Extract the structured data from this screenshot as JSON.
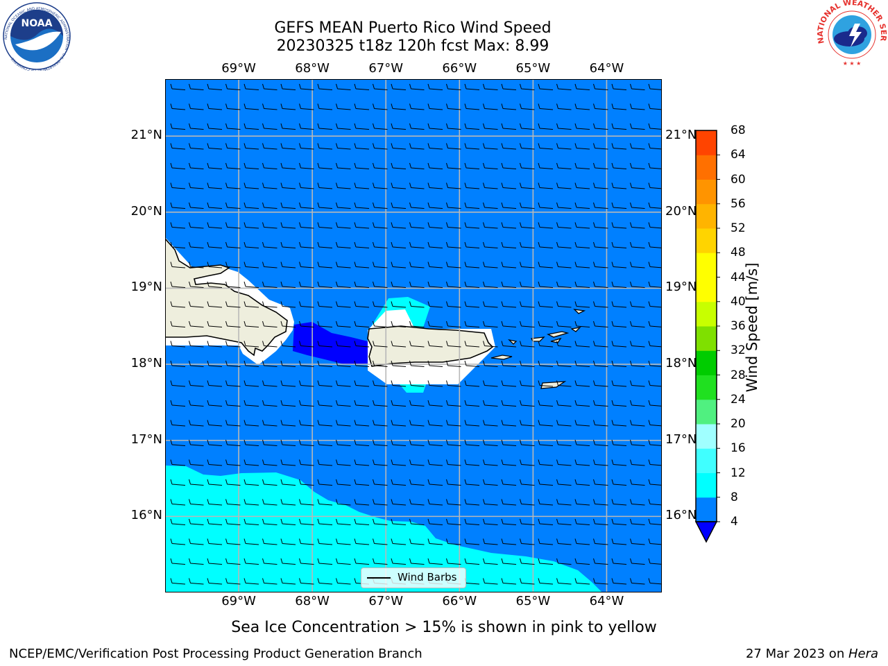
{
  "title": {
    "line1": "GEFS MEAN Puerto Rico Wind Speed",
    "line2": "20230325 t18z 120h fcst   Max: 8.99"
  },
  "logos": {
    "left": {
      "text": "NOAA",
      "ring_text": "NATIONAL OCEANIC AND ATMOSPHERIC ADMINISTRATION · U.S. DEPARTMENT OF COMMERCE"
    },
    "right": {
      "ring_text": "NATIONAL WEATHER SERVICE"
    }
  },
  "map": {
    "lon_labels": [
      "69°W",
      "68°W",
      "67°W",
      "66°W",
      "65°W",
      "64°W"
    ],
    "lon_values": [
      -69,
      -68,
      -67,
      -66,
      -65,
      -64
    ],
    "lat_labels": [
      "21°N",
      "20°N",
      "19°N",
      "18°N",
      "17°N",
      "16°N"
    ],
    "lat_values": [
      21,
      20,
      19,
      18,
      17,
      16
    ],
    "lon_range": [
      -70,
      -63.25
    ],
    "lat_range": [
      15,
      21.75
    ],
    "grid": true,
    "ocean_color": "#0080ff",
    "land_color": "#eeeedd",
    "legend_label": "Wind Barbs"
  },
  "colorbar": {
    "label": "Wind Speed [m/s]",
    "ticks": [
      4,
      8,
      12,
      16,
      20,
      24,
      28,
      32,
      36,
      40,
      44,
      48,
      52,
      56,
      60,
      64,
      68
    ],
    "colors": [
      "#0080ff",
      "#00ffff",
      "#40ffff",
      "#a0ffff",
      "#50f080",
      "#20e020",
      "#00cc00",
      "#7fe000",
      "#c8ff00",
      "#ffff00",
      "#ffff00",
      "#ffd400",
      "#ffb400",
      "#ff9400",
      "#ff7000",
      "#ff4400",
      "#ff0000"
    ],
    "extend_min_color": "#0000ff"
  },
  "note": "Sea Ice Concentration > 15% is shown in pink to yellow",
  "footer": {
    "left": "NCEP/EMC/Verification Post Processing Product Generation Branch",
    "right_date": "27 Mar 2023 on ",
    "right_machine": "Hera"
  }
}
